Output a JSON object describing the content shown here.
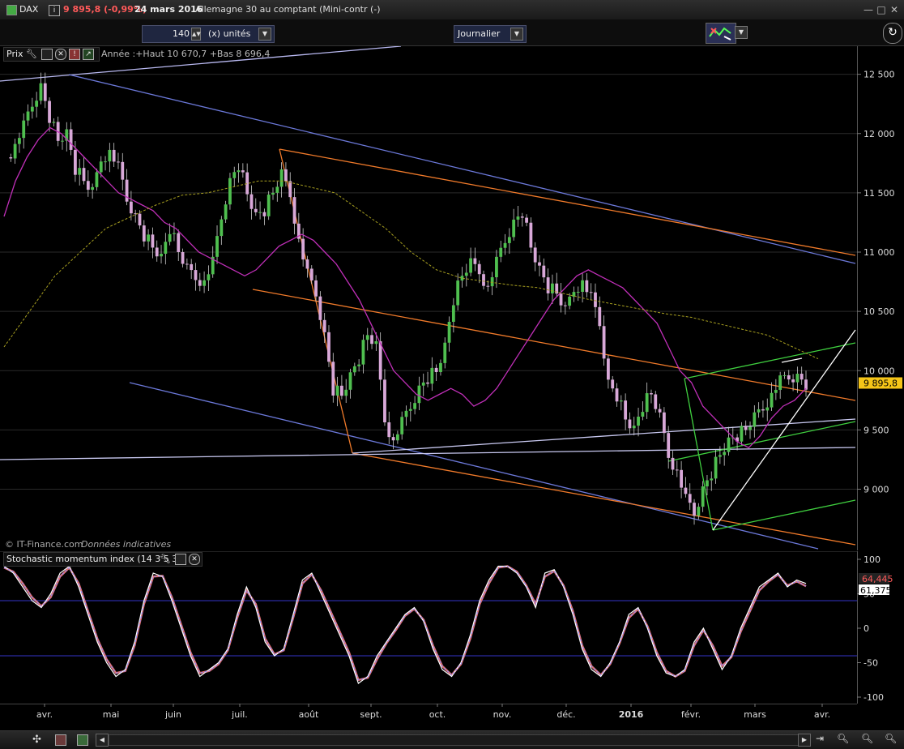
{
  "window": {
    "symbol": "DAX",
    "price_change": "9 895,8 (-0,99%)",
    "date": "24 mars 2016",
    "instrument": "Allemagne 30 au comptant (Mini-contr (-)"
  },
  "toolbar": {
    "units_value": "140",
    "units_label": "(x) unités",
    "period": "Journalier"
  },
  "main_panel": {
    "legend_label": "Prix",
    "legend_text": "Année :+Haut 10 670,7 +Bas 8 696,4",
    "copyright": "© IT-Finance.com",
    "disclaimer": "Données indicatives"
  },
  "indicator_panel": {
    "legend_label": "Stochastic momentum index (14 3 5 3)"
  },
  "chart_data": [
    {
      "type": "candlestick",
      "ylim": [
        8600,
        12600
      ],
      "y_ticks": [
        {
          "v": 12500,
          "label": "12 500"
        },
        {
          "v": 12000,
          "label": "12 000"
        },
        {
          "v": 11500,
          "label": "11 500"
        },
        {
          "v": 11000,
          "label": "11 000"
        },
        {
          "v": 10500,
          "label": "10 500"
        },
        {
          "v": 10000,
          "label": "10 000"
        },
        {
          "v": 9500,
          "label": "9 500"
        },
        {
          "v": 9000,
          "label": "9 000"
        }
      ],
      "last_price": {
        "v": 9895.8,
        "label": "9 895,8"
      },
      "x_labels": [
        "avr.",
        "mai",
        "juin",
        "juil.",
        "août",
        "sept.",
        "oct.",
        "nov.",
        "déc.",
        "2016",
        "févr.",
        "mars",
        "avr."
      ],
      "close_points": [
        11800,
        11900,
        12050,
        12250,
        12400,
        12150,
        11950,
        12000,
        11700,
        11600,
        11500,
        11800,
        11850,
        11700,
        11450,
        11300,
        11150,
        11050,
        10950,
        11200,
        11000,
        10850,
        10800,
        10750,
        10900,
        11300,
        11600,
        11750,
        11500,
        11300,
        11350,
        11500,
        11650,
        11500,
        11100,
        10800,
        10650,
        10300,
        9850,
        9800,
        9950,
        10100,
        10300,
        10200,
        9600,
        9400,
        9550,
        9700,
        9850,
        9950,
        10000,
        10200,
        10600,
        10800,
        10900,
        10850,
        10700,
        10900,
        11100,
        11250,
        11350,
        11050,
        10850,
        10700,
        10650,
        10500,
        10700,
        10750,
        10600,
        10400,
        9900,
        9800,
        9600,
        9500,
        9700,
        9800,
        9600,
        9300,
        9150,
        8900,
        8800,
        9000,
        9150,
        9300,
        9400,
        9450,
        9500,
        9600,
        9700,
        9800,
        9900,
        9950,
        9950,
        9900
      ],
      "sma_points": [
        11300,
        11600,
        11800,
        11950,
        12050,
        12000,
        11900,
        11800,
        11700,
        11600,
        11500,
        11450,
        11400,
        11350,
        11250,
        11200,
        11100,
        11000,
        10950,
        10900,
        10850,
        10800,
        10850,
        10950,
        11050,
        11100,
        11150,
        11100,
        11000,
        10900,
        10750,
        10600,
        10400,
        10200,
        10000,
        9900,
        9800,
        9750,
        9800,
        9850,
        9800,
        9700,
        9750,
        9850,
        10000,
        10150,
        10300,
        10450,
        10600,
        10700,
        10800,
        10850,
        10800,
        10750,
        10700,
        10600,
        10500,
        10400,
        10200,
        10000,
        9900,
        9700,
        9600,
        9500,
        9400,
        9350,
        9450,
        9600,
        9700,
        9750,
        9850
      ],
      "sma_long_points": [
        10200,
        10500,
        10800,
        11000,
        11200,
        11300,
        11400,
        11480,
        11500,
        11550,
        11600,
        11600,
        11550,
        11500,
        11350,
        11200,
        11000,
        10850,
        10780,
        10750,
        10720,
        10700,
        10650,
        10600,
        10560,
        10520,
        10480,
        10450,
        10400,
        10350,
        10300,
        10200,
        10100
      ]
    },
    {
      "type": "line",
      "ylim": [
        -100,
        100
      ],
      "y_ticks": [
        {
          "v": 100,
          "label": "100"
        },
        {
          "v": 50,
          "label": "50"
        },
        {
          "v": 0,
          "label": "0"
        },
        {
          "v": -50,
          "label": "-50"
        },
        {
          "v": -100,
          "label": "-100"
        }
      ],
      "levels": [
        40,
        -40
      ],
      "series": [
        {
          "values": [
            90,
            80,
            60,
            40,
            30,
            50,
            80,
            90,
            60,
            20,
            -20,
            -50,
            -70,
            -60,
            -20,
            40,
            80,
            75,
            40,
            0,
            -40,
            -70,
            -60,
            -50,
            -30,
            20,
            60,
            30,
            -20,
            -40,
            -30,
            20,
            70,
            80,
            50,
            20,
            -10,
            -40,
            -80,
            -70,
            -40,
            -20,
            0,
            20,
            30,
            10,
            -30,
            -60,
            -70,
            -50,
            -10,
            40,
            70,
            90,
            90,
            80,
            60,
            30,
            80,
            85,
            60,
            20,
            -30,
            -60,
            -70,
            -50,
            -20,
            20,
            30,
            0,
            -40,
            -65,
            -70,
            -60,
            -20,
            0,
            -30,
            -60,
            -40,
            0,
            30,
            60,
            70,
            80,
            60,
            70,
            65
          ],
          "current_label": "64,445"
        },
        {
          "values": [
            88,
            82,
            65,
            45,
            32,
            45,
            75,
            88,
            65,
            25,
            -15,
            -45,
            -65,
            -62,
            -25,
            35,
            75,
            76,
            45,
            5,
            -35,
            -65,
            -62,
            -52,
            -32,
            15,
            55,
            35,
            -15,
            -38,
            -32,
            15,
            65,
            78,
            55,
            25,
            -5,
            -35,
            -75,
            -72,
            -45,
            -22,
            -3,
            18,
            28,
            12,
            -25,
            -55,
            -68,
            -52,
            -15,
            35,
            65,
            88,
            90,
            82,
            62,
            35,
            75,
            83,
            62,
            25,
            -25,
            -55,
            -68,
            -52,
            -22,
            15,
            28,
            3,
            -35,
            -62,
            -70,
            -62,
            -25,
            -3,
            -25,
            -55,
            -42,
            -5,
            25,
            55,
            68,
            78,
            62,
            68,
            61
          ],
          "current_label": "61,375"
        }
      ]
    }
  ]
}
